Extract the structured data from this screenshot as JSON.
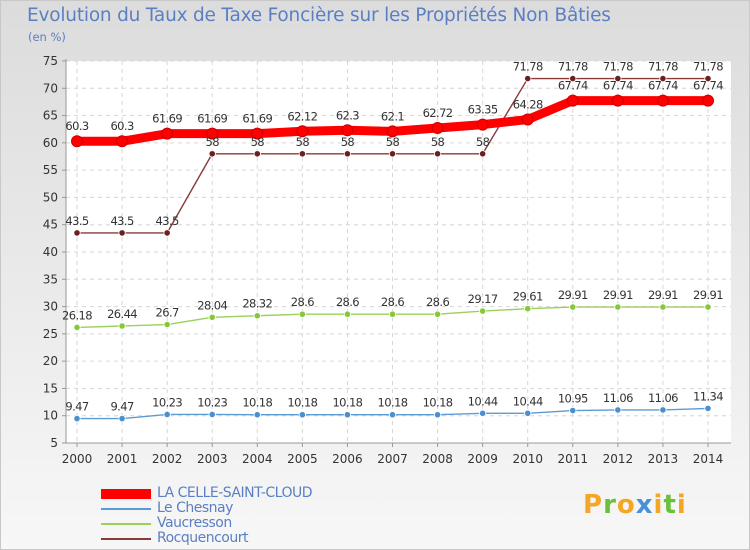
{
  "header": {
    "title": "Evolution du Taux de Taxe Foncière sur les Propriétés Non Bâties",
    "unit": "(en %)"
  },
  "logo": {
    "letters": [
      "P",
      "r",
      "o",
      "x",
      "i",
      "t",
      "i"
    ],
    "colors": [
      "#f5a623",
      "#6cbf3a",
      "#f5a623",
      "#4a90d9",
      "#f5a623",
      "#6cbf3a",
      "#f5a623"
    ]
  },
  "chart_data": {
    "type": "line",
    "title": "Evolution du Taux de Taxe Foncière sur les Propriétés Non Bâties",
    "ylabel": "(en %)",
    "xlabel": "",
    "ylim": [
      5,
      75
    ],
    "yticks": [
      5,
      10,
      15,
      20,
      25,
      30,
      35,
      40,
      45,
      50,
      55,
      60,
      65,
      70,
      75
    ],
    "grid": true,
    "legend_position": "bottom-left",
    "x": [
      "2000",
      "2001",
      "2002",
      "2003",
      "2004",
      "2005",
      "2006",
      "2007",
      "2008",
      "2009",
      "2010",
      "2011",
      "2012",
      "2013",
      "2014"
    ],
    "series": [
      {
        "name": "LA CELLE-SAINT-CLOUD",
        "color": "#ff0000",
        "marker": "#ff0000",
        "values": [
          60.3,
          60.3,
          61.69,
          61.69,
          61.69,
          62.12,
          62.3,
          62.1,
          62.72,
          63.35,
          64.28,
          67.74,
          67.74,
          67.74,
          67.74
        ],
        "labels": [
          "60.3",
          "60.3",
          "61.69",
          "61.69",
          "61.69",
          "62.12",
          "62.3",
          "62.1",
          "62.72",
          "63.35",
          "64.28",
          "67.74",
          "67.74",
          "67.74",
          "67.74"
        ]
      },
      {
        "name": "Le Chesnay",
        "color": "#5b9bd5",
        "marker": "#4a8fd0",
        "values": [
          9.47,
          9.47,
          10.23,
          10.23,
          10.18,
          10.18,
          10.18,
          10.18,
          10.18,
          10.44,
          10.44,
          10.95,
          11.06,
          11.06,
          11.34
        ],
        "labels": [
          "9.47",
          "9.47",
          "10.23",
          "10.23",
          "10.18",
          "10.18",
          "10.18",
          "10.18",
          "10.18",
          "10.44",
          "10.44",
          "10.95",
          "11.06",
          "11.06",
          "11.34"
        ]
      },
      {
        "name": "Vaucresson",
        "color": "#9ad15a",
        "marker": "#86c83a",
        "values": [
          26.18,
          26.44,
          26.7,
          28.04,
          28.32,
          28.6,
          28.6,
          28.6,
          28.6,
          29.17,
          29.61,
          29.91,
          29.91,
          29.91,
          29.91
        ],
        "labels": [
          "26.18",
          "26.44",
          "26.7",
          "28.04",
          "28.32",
          "28.6",
          "28.6",
          "28.6",
          "28.6",
          "29.17",
          "29.61",
          "29.91",
          "29.91",
          "29.91",
          "29.91"
        ]
      },
      {
        "name": "Rocquencourt",
        "color": "#8b3a3a",
        "marker": "#6b1f1f",
        "values": [
          43.5,
          43.5,
          43.5,
          58,
          58,
          58,
          58,
          58,
          58,
          58,
          71.78,
          71.78,
          71.78,
          71.78,
          71.78
        ],
        "labels": [
          "43.5",
          "43.5",
          "43.5",
          "58",
          "58",
          "58",
          "58",
          "58",
          "58",
          "58",
          "71.78",
          "71.78",
          "71.78",
          "71.78",
          "71.78"
        ]
      }
    ]
  }
}
